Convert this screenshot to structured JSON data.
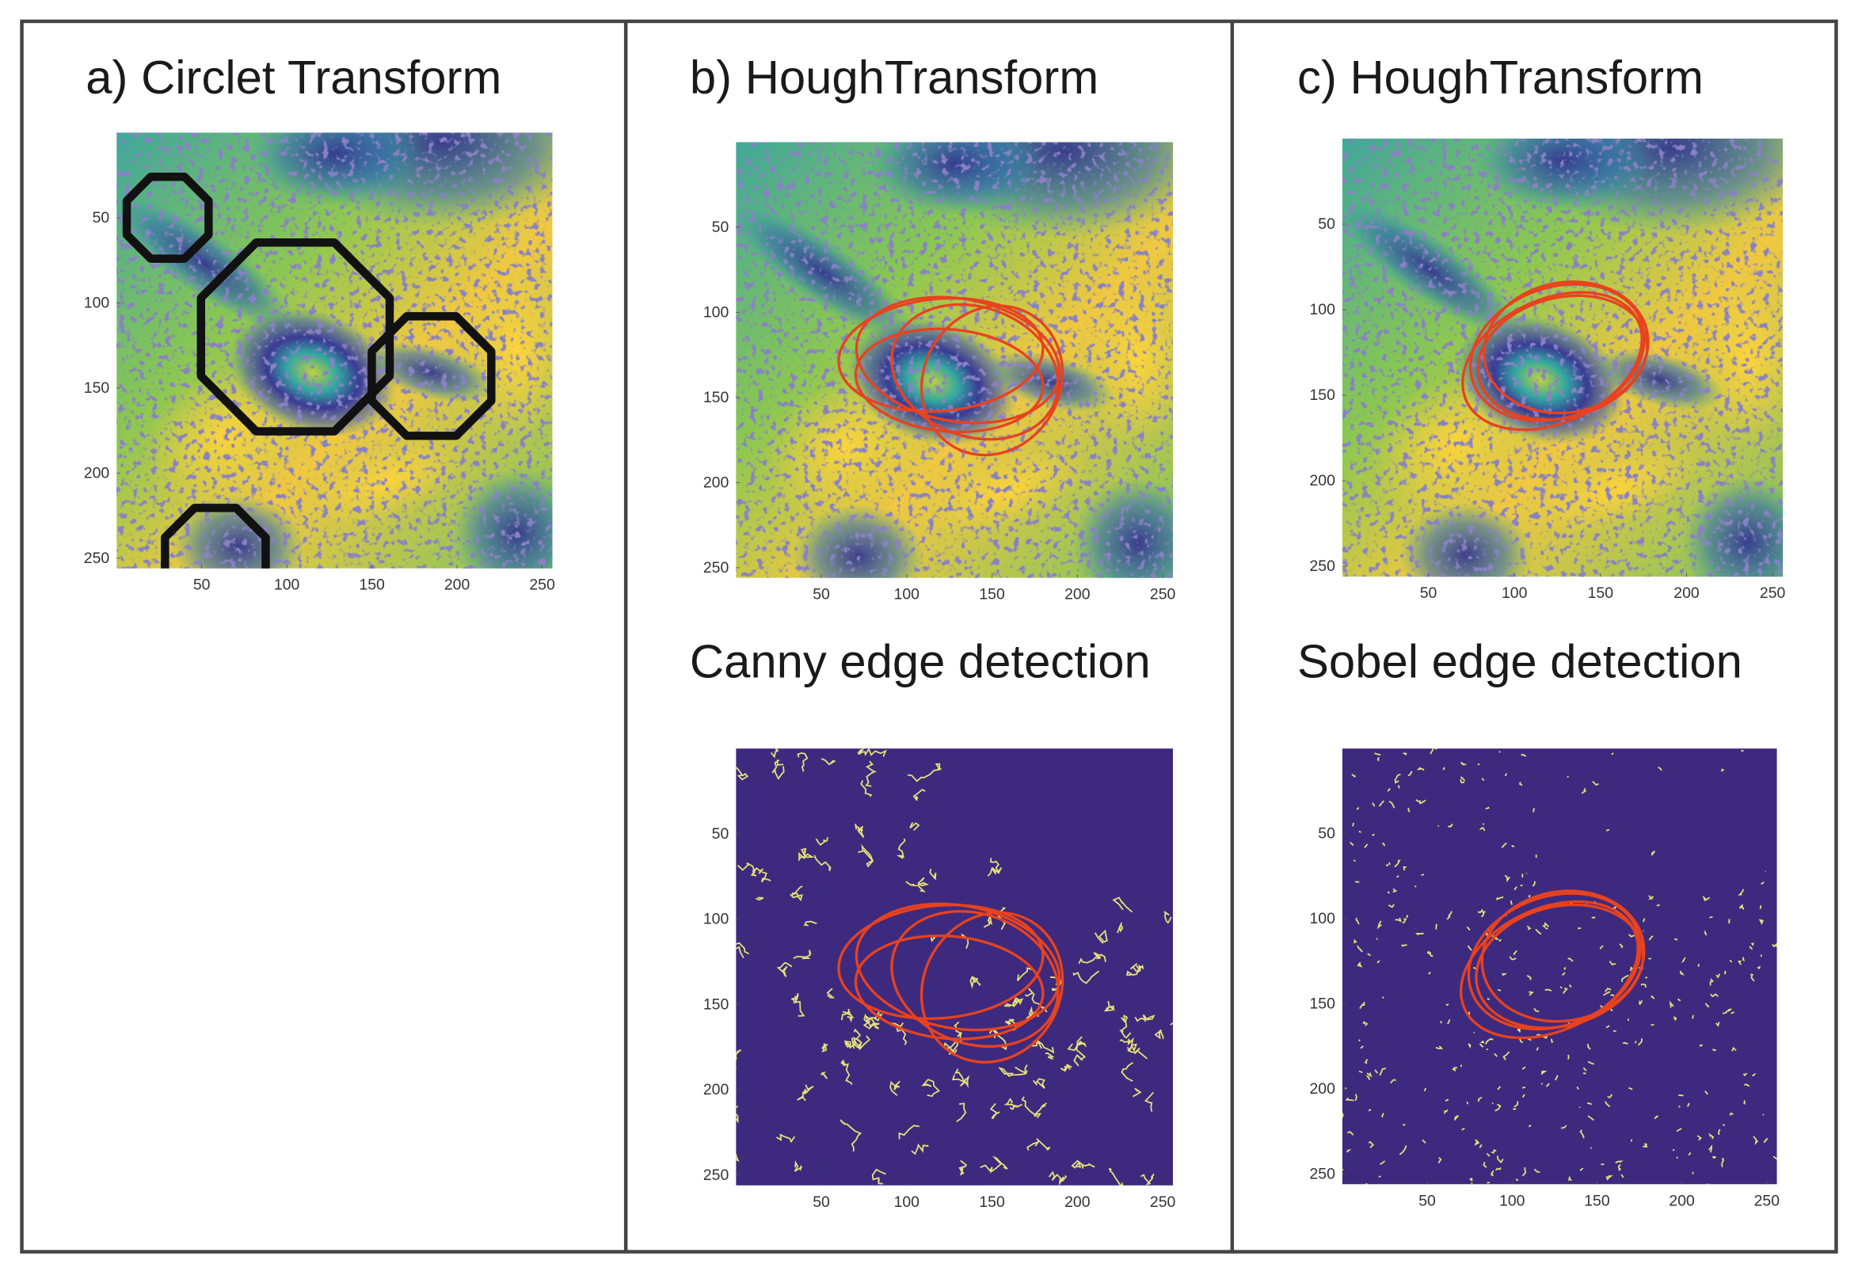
{
  "panels": [
    {
      "title": "a) Circlet Transform",
      "images": [
        {
          "xticks": [
            50,
            100,
            150,
            200,
            250
          ],
          "yticks": [
            50,
            100,
            150,
            200,
            250
          ],
          "xlim": [
            0,
            256
          ],
          "ylim": [
            0,
            256
          ]
        }
      ]
    },
    {
      "title": "b) HoughTransform",
      "images": [
        {
          "xticks": [
            50,
            100,
            150,
            200,
            250
          ],
          "yticks": [
            50,
            100,
            150,
            200,
            250
          ],
          "xlim": [
            0,
            256
          ],
          "ylim": [
            0,
            256
          ]
        },
        {
          "caption": "Canny edge detection",
          "xticks": [
            50,
            100,
            150,
            200,
            250
          ],
          "yticks": [
            50,
            100,
            150,
            200,
            250
          ],
          "xlim": [
            0,
            256
          ],
          "ylim": [
            0,
            256
          ]
        }
      ]
    },
    {
      "title": "c) HoughTransform",
      "images": [
        {
          "xticks": [
            50,
            100,
            150,
            200,
            250
          ],
          "yticks": [
            50,
            100,
            150,
            200,
            250
          ],
          "xlim": [
            0,
            256
          ],
          "ylim": [
            0,
            256
          ]
        },
        {
          "caption": "Sobel edge detection",
          "xticks": [
            50,
            100,
            150,
            200,
            250
          ],
          "yticks": [
            50,
            100,
            150,
            200,
            250
          ],
          "xlim": [
            0,
            256
          ],
          "ylim": [
            0,
            256
          ]
        }
      ]
    }
  ]
}
